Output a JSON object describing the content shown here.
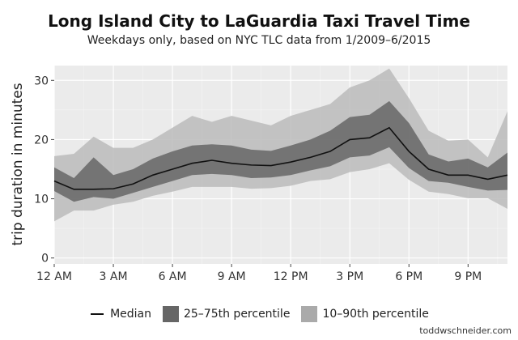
{
  "chart_data": {
    "type": "area",
    "title": "Long Island City to LaGuardia Taxi Travel Time",
    "subtitle": "Weekdays only, based on NYC TLC data from 1/2009–6/2015",
    "xlabel": "",
    "ylabel": "trip duration in minutes",
    "xlim": [
      0,
      23
    ],
    "ylim": [
      -1,
      32.5
    ],
    "x": [
      0,
      1,
      2,
      3,
      4,
      5,
      6,
      7,
      8,
      9,
      10,
      11,
      12,
      13,
      14,
      15,
      16,
      17,
      18,
      19,
      20,
      21,
      22,
      23
    ],
    "x_ticks": [
      0,
      3,
      6,
      9,
      12,
      15,
      18,
      21
    ],
    "x_tick_labels": [
      "12 AM",
      "3 AM",
      "6 AM",
      "9 AM",
      "12 PM",
      "3 PM",
      "6 PM",
      "9 PM"
    ],
    "y_ticks": [
      0,
      10,
      20,
      30
    ],
    "y_tick_labels": [
      "0",
      "10",
      "20",
      "30"
    ],
    "grid": true,
    "legend_position": "bottom",
    "series": [
      {
        "name": "Median",
        "kind": "line",
        "color": "#111111",
        "values": [
          13,
          11.6,
          11.6,
          11.7,
          12.5,
          14.0,
          15.0,
          16.0,
          16.5,
          16.0,
          15.7,
          15.6,
          16.2,
          17.0,
          18.0,
          20.0,
          20.3,
          22.0,
          18.0,
          15.0,
          14.0,
          14.0,
          13.3,
          14.0
        ]
      },
      {
        "name": "25–75th percentile",
        "kind": "band",
        "color": "#666666",
        "lower": [
          11.3,
          9.5,
          10.3,
          10.0,
          11.0,
          12.0,
          13.0,
          14.0,
          14.2,
          14.0,
          13.5,
          13.6,
          14.0,
          14.8,
          15.5,
          17.0,
          17.3,
          18.7,
          15.2,
          13.0,
          12.7,
          12.0,
          11.4,
          11.5
        ],
        "upper": [
          15.3,
          13.5,
          17.0,
          14.0,
          15.0,
          16.8,
          18.0,
          19.0,
          19.2,
          19.0,
          18.3,
          18.1,
          19.0,
          20.0,
          21.5,
          23.8,
          24.2,
          26.5,
          22.8,
          17.5,
          16.3,
          16.8,
          15.3,
          17.8
        ]
      },
      {
        "name": "10–90th percentile",
        "kind": "band",
        "color": "#bbbbbb",
        "lower": [
          6.2,
          8.0,
          8.0,
          9.0,
          9.5,
          10.5,
          11.2,
          12.0,
          12.0,
          12.0,
          11.7,
          11.8,
          12.2,
          13.0,
          13.3,
          14.5,
          15.0,
          16.0,
          13.2,
          11.2,
          10.8,
          10.1,
          10.1,
          8.3
        ],
        "upper": [
          17.2,
          17.6,
          20.5,
          18.6,
          18.6,
          20.0,
          22.0,
          24.0,
          23.0,
          24.0,
          23.2,
          22.4,
          24.0,
          25.0,
          26.0,
          28.8,
          30.0,
          32.0,
          27.0,
          21.5,
          19.8,
          20.0,
          17.0,
          24.8
        ]
      }
    ]
  },
  "legend": {
    "median_label": "Median",
    "iqr_label": "25–75th percentile",
    "p10_90_label": "10–90th percentile"
  },
  "credit": "toddwschneider.com"
}
